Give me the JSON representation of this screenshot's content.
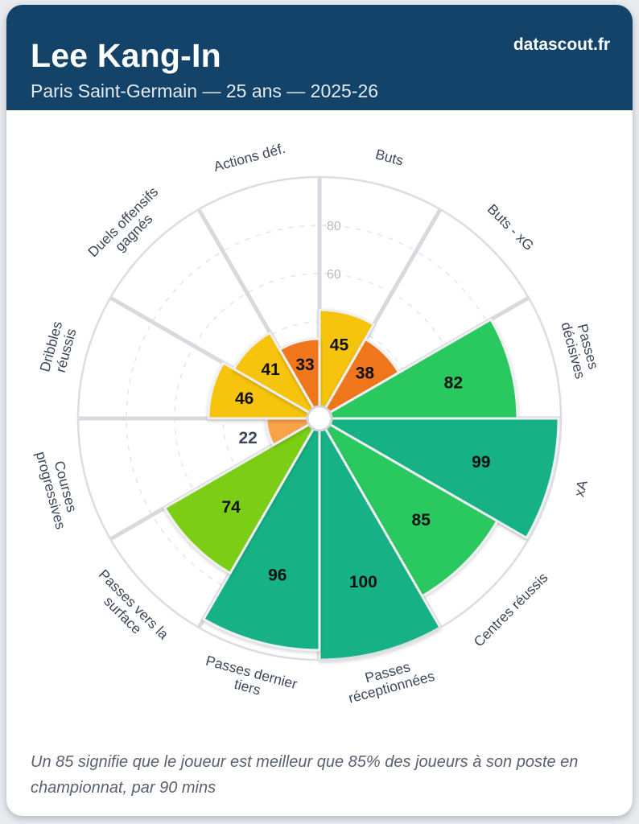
{
  "header": {
    "title": "Lee Kang-In",
    "subtitle": "Paris Saint-Germain — 25 ans — 2025-26",
    "brand": "datascout.fr"
  },
  "footer": {
    "note": "Un 85 signifie que le joueur est meilleur que 85% des joueurs à son poste en championnat, par 90 mins"
  },
  "chart_data": {
    "type": "bar",
    "layout": "polar-pizza",
    "rlim": [
      0,
      100
    ],
    "rticks": [
      20,
      40,
      60,
      80
    ],
    "rtick_labels_shown": [
      80,
      60
    ],
    "grid": "dashed-circles",
    "legend": "none",
    "slices": [
      {
        "label": "Buts",
        "lines": [
          "Buts"
        ],
        "value": 45,
        "color": "#f6c411"
      },
      {
        "label": "Buts - xG",
        "lines": [
          "Buts - xG"
        ],
        "value": 38,
        "color": "#f0761a"
      },
      {
        "label": "Passes décisives",
        "lines": [
          "Passes",
          "décisives"
        ],
        "value": 82,
        "color": "#2bc95e"
      },
      {
        "label": "xA",
        "lines": [
          "xA"
        ],
        "value": 99,
        "color": "#16b286"
      },
      {
        "label": "Centres réussis",
        "lines": [
          "Centres réussis"
        ],
        "value": 85,
        "color": "#2bc95e"
      },
      {
        "label": "Passes réceptionnées",
        "lines": [
          "Passes",
          "réceptionnées"
        ],
        "value": 100,
        "color": "#16b286"
      },
      {
        "label": "Passes dernier tiers",
        "lines": [
          "Passes dernier",
          "tiers"
        ],
        "value": 96,
        "color": "#16b286"
      },
      {
        "label": "Passes vers la surface",
        "lines": [
          "Passes vers la",
          "surface"
        ],
        "value": 74,
        "color": "#7ccd12"
      },
      {
        "label": "Courses progressives",
        "lines": [
          "Courses",
          "progressives"
        ],
        "value": 22,
        "color": "#f9a348"
      },
      {
        "label": "Dribbles réussis",
        "lines": [
          "Dribbles",
          "réussis"
        ],
        "value": 46,
        "color": "#f6c411"
      },
      {
        "label": "Duels offensifs gagnés",
        "lines": [
          "Duels offensifs",
          "gagnés"
        ],
        "value": 41,
        "color": "#f6c411"
      },
      {
        "label": "Actions déf.",
        "lines": [
          "Actions déf."
        ],
        "value": 33,
        "color": "#f0761a"
      }
    ],
    "colors": {
      "grid_line": "#e3e5eb",
      "spoke": "#d8d9de",
      "outer_ring": "#dcdde2",
      "tick_label": "#b5bac6",
      "param_label": "#3d475a",
      "value_label": "#101010",
      "value_label_outside": "#3e4859",
      "slice_stroke": "#eff0f3"
    }
  }
}
